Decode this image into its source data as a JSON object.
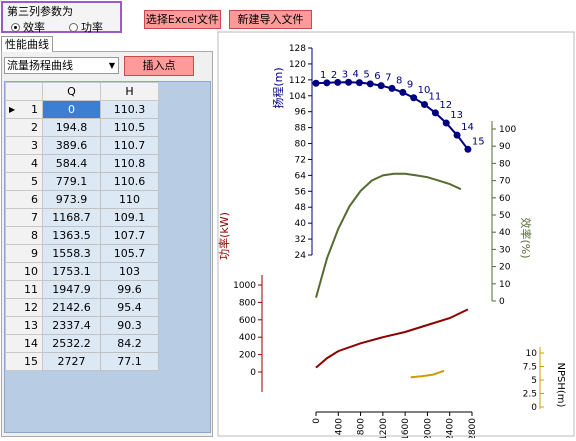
{
  "params": {
    "title": "第三列参数为",
    "options": [
      {
        "label": "效率",
        "selected": true
      },
      {
        "label": "功率",
        "selected": false
      }
    ]
  },
  "buttons": {
    "select_excel": "选择Excel文件",
    "new_import": "新建导入文件",
    "insert_point": "插入点"
  },
  "tab_label": "性能曲线",
  "combo_value": "流量扬程曲线",
  "table": {
    "headers": [
      "Q",
      "H"
    ],
    "rows": [
      {
        "n": "1",
        "q": "0",
        "h": "110.3"
      },
      {
        "n": "2",
        "q": "194.8",
        "h": "110.5"
      },
      {
        "n": "3",
        "q": "389.6",
        "h": "110.7"
      },
      {
        "n": "4",
        "q": "584.4",
        "h": "110.8"
      },
      {
        "n": "5",
        "q": "779.1",
        "h": "110.6"
      },
      {
        "n": "6",
        "q": "973.9",
        "h": "110"
      },
      {
        "n": "7",
        "q": "1168.7",
        "h": "109.1"
      },
      {
        "n": "8",
        "q": "1363.5",
        "h": "107.7"
      },
      {
        "n": "9",
        "q": "1558.3",
        "h": "105.7"
      },
      {
        "n": "10",
        "q": "1753.1",
        "h": "103"
      },
      {
        "n": "11",
        "q": "1947.9",
        "h": "99.6"
      },
      {
        "n": "12",
        "q": "2142.6",
        "h": "95.4"
      },
      {
        "n": "13",
        "q": "2337.4",
        "h": "90.3"
      },
      {
        "n": "14",
        "q": "2532.2",
        "h": "84.2"
      },
      {
        "n": "15",
        "q": "2727",
        "h": "77.1"
      }
    ]
  },
  "chart_data": {
    "type": "line",
    "x_ticks": [
      "0",
      "400",
      "800",
      "1200",
      "1600",
      "2000",
      "2400",
      "2800"
    ],
    "x_range": [
      0,
      2800
    ],
    "head": {
      "ylabel": "扬程(m)",
      "ticks": [
        "128",
        "120",
        "112",
        "104",
        "96",
        "88",
        "80",
        "72",
        "64",
        "56",
        "48",
        "40",
        "32",
        "24"
      ],
      "range": [
        24,
        128
      ],
      "x": [
        0,
        194.8,
        389.6,
        584.4,
        779.1,
        973.9,
        1168.7,
        1363.5,
        1558.3,
        1753.1,
        1947.9,
        2142.6,
        2337.4,
        2532.2,
        2727
      ],
      "y": [
        110.3,
        110.5,
        110.7,
        110.8,
        110.6,
        110,
        109.1,
        107.7,
        105.7,
        103,
        99.6,
        95.4,
        90.3,
        84.2,
        77.1
      ],
      "point_labels": [
        "1",
        "2",
        "3",
        "4",
        "5",
        "6",
        "7",
        "8",
        "9",
        "10",
        "11",
        "12",
        "13",
        "14",
        "15"
      ],
      "color": "#000080"
    },
    "efficiency": {
      "ylabel": "效率(%)",
      "ticks": [
        "100",
        "90",
        "80",
        "70",
        "60",
        "50",
        "40",
        "30",
        "20",
        "10",
        "0"
      ],
      "range": [
        0,
        100
      ],
      "x": [
        0,
        200,
        400,
        600,
        800,
        1000,
        1200,
        1400,
        1600,
        1800,
        2000,
        2200,
        2400,
        2600
      ],
      "y": [
        2,
        25,
        42,
        55,
        64,
        70,
        73,
        74,
        74,
        73,
        72,
        70,
        68,
        65
      ],
      "color": "#556b2f"
    },
    "power": {
      "ylabel": "功率(kW)",
      "ticks": [
        "1000",
        "800",
        "600",
        "400",
        "200",
        "0"
      ],
      "range": [
        0,
        1000
      ],
      "x": [
        0,
        200,
        400,
        800,
        1200,
        1600,
        2000,
        2400,
        2727
      ],
      "y": [
        50,
        160,
        240,
        330,
        400,
        460,
        540,
        620,
        720
      ],
      "color": "#8b0000"
    },
    "npsh": {
      "ylabel": "NPSH(m)",
      "ticks": [
        "10",
        "7.5",
        "5",
        "2.5",
        "0"
      ],
      "range": [
        0,
        10
      ],
      "x": [
        1700,
        1900,
        2100,
        2300
      ],
      "y": [
        5.5,
        5.7,
        6,
        6.7
      ],
      "color": "#c8a000"
    }
  }
}
